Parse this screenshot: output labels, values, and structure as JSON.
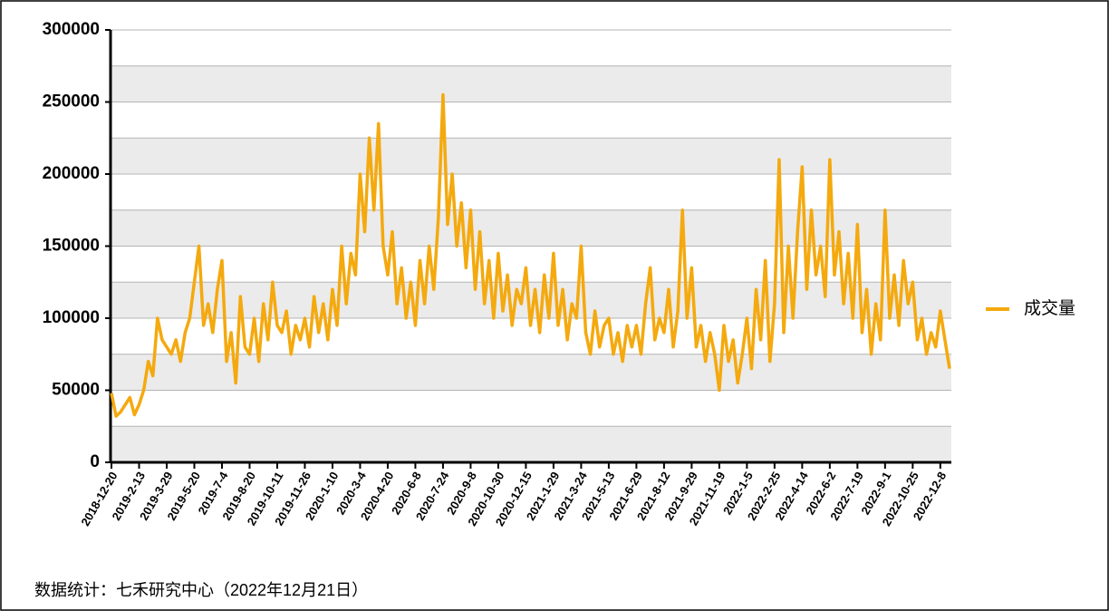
{
  "chart_data": {
    "type": "line",
    "source": "数据统计：七禾研究中心（2022年12月21日）",
    "categories": [
      "2018-12-20",
      null,
      null,
      null,
      null,
      null,
      "2019-2-13",
      null,
      null,
      null,
      null,
      null,
      "2019-3-29",
      null,
      null,
      null,
      null,
      null,
      "2019-5-20",
      null,
      null,
      null,
      null,
      null,
      "2019-7-4",
      null,
      null,
      null,
      null,
      null,
      "2019-8-20",
      null,
      null,
      null,
      null,
      null,
      "2019-10-11",
      null,
      null,
      null,
      null,
      null,
      "2019-11-26",
      null,
      null,
      null,
      null,
      null,
      "2020-1-10",
      null,
      null,
      null,
      null,
      null,
      "2020-3-4",
      null,
      null,
      null,
      null,
      null,
      "2020-4-20",
      null,
      null,
      null,
      null,
      null,
      "2020-6-8",
      null,
      null,
      null,
      null,
      null,
      "2020-7-24",
      null,
      null,
      null,
      null,
      null,
      "2020-9-8",
      null,
      null,
      null,
      null,
      null,
      "2020-10-30",
      null,
      null,
      null,
      null,
      null,
      "2020-12-15",
      null,
      null,
      null,
      null,
      null,
      "2021-1-29",
      null,
      null,
      null,
      null,
      null,
      "2021-3-24",
      null,
      null,
      null,
      null,
      null,
      "2021-5-13",
      null,
      null,
      null,
      null,
      null,
      "2021-6-29",
      null,
      null,
      null,
      null,
      null,
      "2021-8-12",
      null,
      null,
      null,
      null,
      null,
      "2021-9-29",
      null,
      null,
      null,
      null,
      null,
      "2021-11-19",
      null,
      null,
      null,
      null,
      null,
      "2022-1-5",
      null,
      null,
      null,
      null,
      null,
      "2022-2-25",
      null,
      null,
      null,
      null,
      null,
      "2022-4-14",
      null,
      null,
      null,
      null,
      null,
      "2022-6-2",
      null,
      null,
      null,
      null,
      null,
      "2022-7-19",
      null,
      null,
      null,
      null,
      null,
      "2022-9-1",
      null,
      null,
      null,
      null,
      null,
      "2022-10-25",
      null,
      null,
      null,
      null,
      null,
      "2022-12-8",
      null,
      null
    ],
    "series": [
      {
        "name": "成交量",
        "color": "#f4a90e",
        "values": [
          48000,
          32000,
          35000,
          40000,
          45000,
          33000,
          40000,
          50000,
          70000,
          60000,
          100000,
          85000,
          80000,
          75000,
          85000,
          70000,
          90000,
          100000,
          125000,
          150000,
          95000,
          110000,
          90000,
          120000,
          140000,
          70000,
          90000,
          55000,
          115000,
          80000,
          75000,
          100000,
          70000,
          110000,
          85000,
          125000,
          95000,
          90000,
          105000,
          75000,
          95000,
          85000,
          100000,
          80000,
          115000,
          90000,
          110000,
          85000,
          120000,
          95000,
          150000,
          110000,
          145000,
          130000,
          200000,
          160000,
          225000,
          175000,
          235000,
          150000,
          130000,
          160000,
          110000,
          135000,
          100000,
          125000,
          95000,
          140000,
          110000,
          150000,
          120000,
          170000,
          255000,
          165000,
          200000,
          150000,
          180000,
          135000,
          175000,
          120000,
          160000,
          110000,
          140000,
          100000,
          145000,
          105000,
          130000,
          95000,
          120000,
          110000,
          135000,
          95000,
          120000,
          90000,
          130000,
          100000,
          145000,
          95000,
          120000,
          85000,
          110000,
          100000,
          150000,
          90000,
          75000,
          105000,
          80000,
          95000,
          100000,
          75000,
          90000,
          70000,
          95000,
          80000,
          95000,
          75000,
          110000,
          135000,
          85000,
          100000,
          90000,
          120000,
          80000,
          105000,
          175000,
          100000,
          135000,
          80000,
          95000,
          70000,
          90000,
          75000,
          50000,
          95000,
          70000,
          85000,
          55000,
          75000,
          100000,
          65000,
          120000,
          85000,
          140000,
          70000,
          110000,
          210000,
          90000,
          150000,
          100000,
          160000,
          205000,
          120000,
          175000,
          130000,
          150000,
          115000,
          210000,
          130000,
          160000,
          110000,
          145000,
          100000,
          165000,
          90000,
          120000,
          75000,
          110000,
          85000,
          175000,
          100000,
          130000,
          95000,
          140000,
          110000,
          125000,
          85000,
          100000,
          75000,
          90000,
          80000,
          105000,
          85000,
          65000
        ]
      }
    ],
    "ylim": [
      0,
      300000
    ],
    "yticks": [
      0,
      50000,
      100000,
      150000,
      200000,
      250000,
      300000
    ],
    "grid": true,
    "legend": "right"
  }
}
